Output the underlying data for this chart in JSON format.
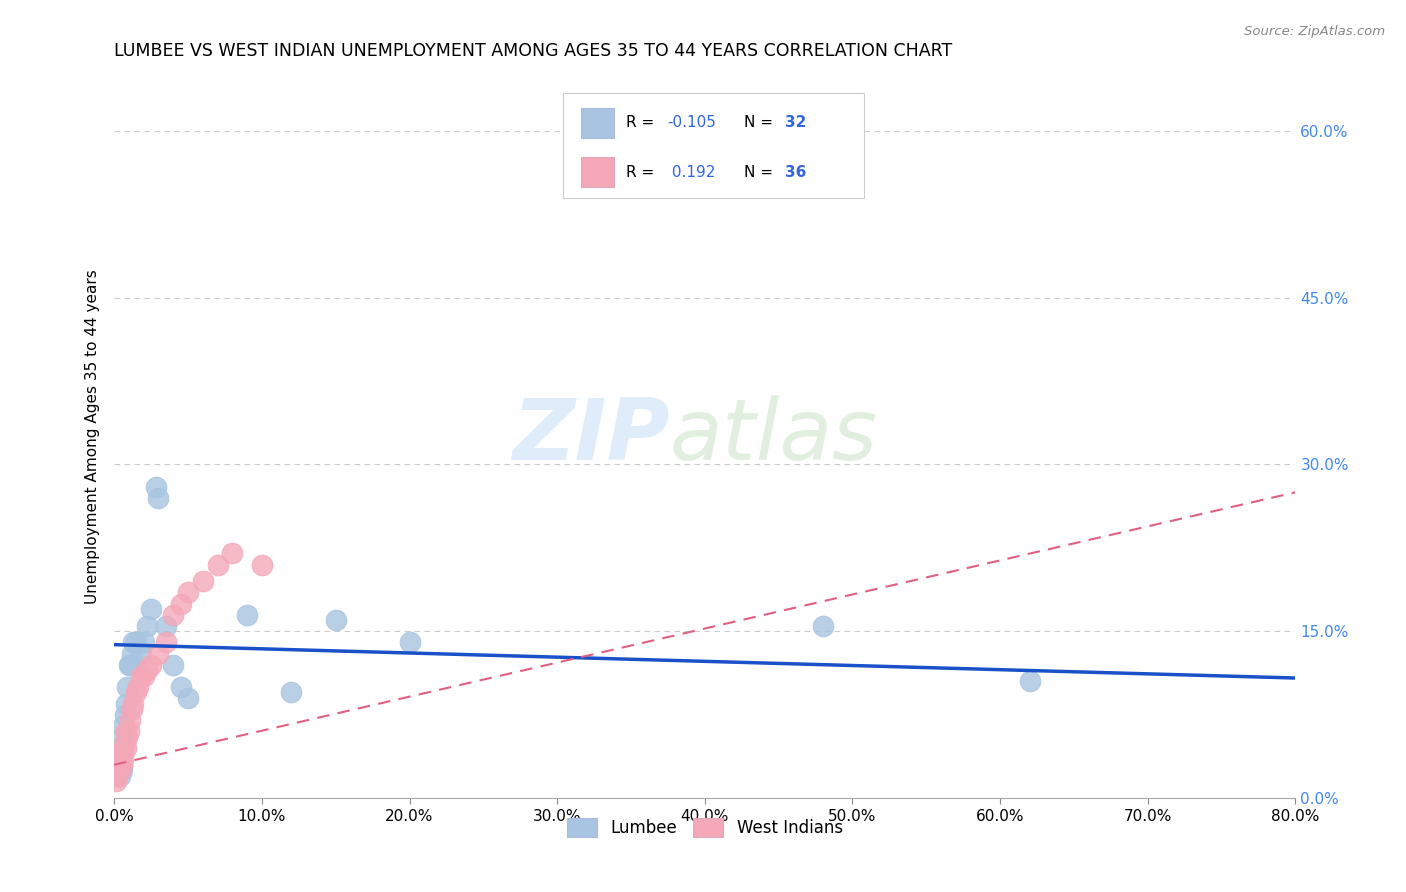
{
  "title": "LUMBEE VS WEST INDIAN UNEMPLOYMENT AMONG AGES 35 TO 44 YEARS CORRELATION CHART",
  "source": "Source: ZipAtlas.com",
  "ylabel": "Unemployment Among Ages 35 to 44 years",
  "xlim": [
    0.0,
    0.8
  ],
  "ylim": [
    0.0,
    0.65
  ],
  "xticks": [
    0.0,
    0.1,
    0.2,
    0.3,
    0.4,
    0.5,
    0.6,
    0.7,
    0.8
  ],
  "yticks_right": [
    0.0,
    0.15,
    0.3,
    0.45,
    0.6
  ],
  "ytick_labels_right": [
    "0.0%",
    "15.0%",
    "30.0%",
    "45.0%",
    "60.0%"
  ],
  "xtick_labels": [
    "0.0%",
    "10.0%",
    "20.0%",
    "30.0%",
    "40.0%",
    "50.0%",
    "60.0%",
    "70.0%",
    "80.0%"
  ],
  "lumbee_R": -0.105,
  "lumbee_N": 32,
  "westindian_R": 0.192,
  "westindian_N": 36,
  "lumbee_color": "#a8c4e0",
  "westindian_color": "#f4a8b8",
  "lumbee_line_color": "#1a50c8",
  "westindian_line_color": "#e06080",
  "background_color": "#ffffff",
  "grid_color": "#cccccc",
  "watermark_zip": "ZIP",
  "watermark_atlas": "atlas",
  "lumbee_x": [
    0.003,
    0.004,
    0.004,
    0.005,
    0.005,
    0.005,
    0.006,
    0.006,
    0.007,
    0.008,
    0.009,
    0.01,
    0.011,
    0.012,
    0.013,
    0.015,
    0.018,
    0.02,
    0.022,
    0.025,
    0.028,
    0.03,
    0.035,
    0.04,
    0.045,
    0.05,
    0.09,
    0.12,
    0.15,
    0.2,
    0.48,
    0.62
  ],
  "lumbee_y": [
    0.03,
    0.045,
    0.02,
    0.04,
    0.03,
    0.025,
    0.055,
    0.065,
    0.075,
    0.085,
    0.1,
    0.12,
    0.12,
    0.13,
    0.14,
    0.14,
    0.13,
    0.14,
    0.155,
    0.17,
    0.28,
    0.27,
    0.155,
    0.12,
    0.1,
    0.09,
    0.165,
    0.095,
    0.16,
    0.14,
    0.155,
    0.105
  ],
  "westindian_x": [
    0.001,
    0.001,
    0.001,
    0.002,
    0.002,
    0.003,
    0.003,
    0.004,
    0.004,
    0.005,
    0.005,
    0.006,
    0.006,
    0.007,
    0.008,
    0.008,
    0.009,
    0.01,
    0.011,
    0.012,
    0.013,
    0.015,
    0.016,
    0.018,
    0.02,
    0.022,
    0.025,
    0.03,
    0.035,
    0.04,
    0.045,
    0.05,
    0.06,
    0.07,
    0.08,
    0.1
  ],
  "westindian_y": [
    0.015,
    0.02,
    0.025,
    0.02,
    0.03,
    0.025,
    0.03,
    0.025,
    0.035,
    0.03,
    0.04,
    0.035,
    0.045,
    0.05,
    0.045,
    0.06,
    0.055,
    0.06,
    0.07,
    0.08,
    0.085,
    0.095,
    0.1,
    0.11,
    0.11,
    0.115,
    0.12,
    0.13,
    0.14,
    0.165,
    0.175,
    0.185,
    0.195,
    0.21,
    0.22,
    0.21
  ],
  "lumbee_line_x0": 0.0,
  "lumbee_line_y0": 0.138,
  "lumbee_line_x1": 0.8,
  "lumbee_line_y1": 0.108,
  "westindian_line_x0": 0.0,
  "westindian_line_y0": 0.03,
  "westindian_line_x1": 0.8,
  "westindian_line_y1": 0.275
}
